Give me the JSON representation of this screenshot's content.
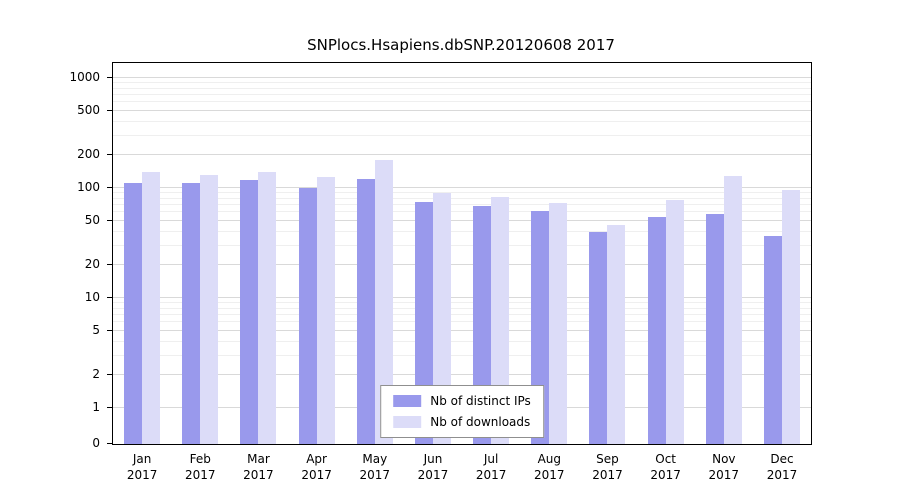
{
  "chart_data": {
    "type": "bar",
    "title": "SNPlocs.Hsapiens.dbSNP.20120608 2017",
    "year": "2017",
    "categories": [
      "Jan",
      "Feb",
      "Mar",
      "Apr",
      "May",
      "Jun",
      "Jul",
      "Aug",
      "Sep",
      "Oct",
      "Nov",
      "Dec"
    ],
    "series": [
      {
        "name": "Nb of distinct IPs",
        "color": "#9999ec",
        "values": [
          110,
          110,
          118,
          100,
          122,
          75,
          68,
          62,
          40,
          55,
          58,
          37
        ]
      },
      {
        "name": "Nb of downloads",
        "color": "#dcdcf8",
        "values": [
          140,
          130,
          140,
          125,
          180,
          90,
          83,
          73,
          46,
          78,
          128,
          95
        ]
      }
    ],
    "yscale": "symlog",
    "yticks": [
      0,
      1,
      2,
      5,
      10,
      20,
      50,
      100,
      200,
      500,
      1000
    ],
    "ylim": [
      0,
      1000
    ],
    "xlabel": "",
    "ylabel": "",
    "grid": true,
    "legend_position": "bottom-center"
  }
}
